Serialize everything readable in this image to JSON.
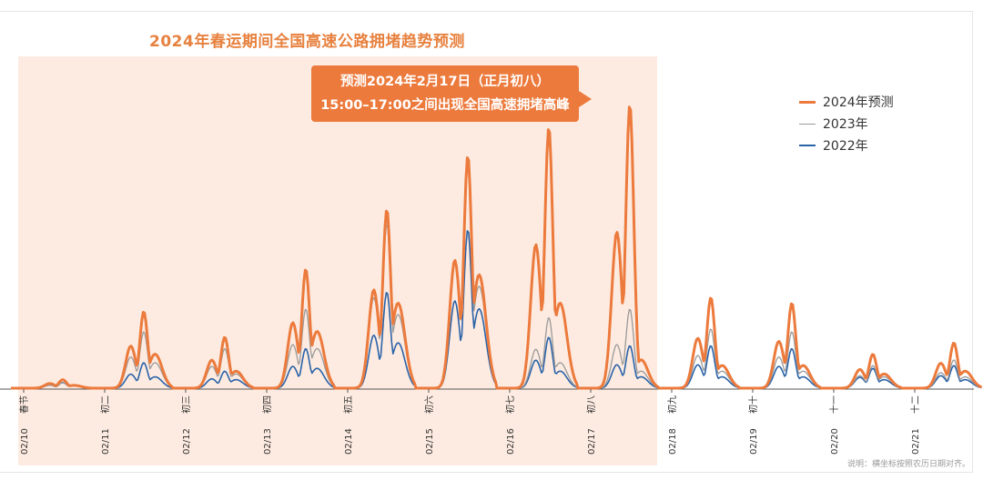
{
  "chart_data": {
    "type": "line",
    "title": "2024年春运期间全国高速公路拥堵趋势预测",
    "xlabel": "",
    "ylabel": "",
    "categories": [
      {
        "date": "02/10",
        "lunar": "春节"
      },
      {
        "date": "02/11",
        "lunar": "初二"
      },
      {
        "date": "02/12",
        "lunar": "初三"
      },
      {
        "date": "02/13",
        "lunar": "初四"
      },
      {
        "date": "02/14",
        "lunar": "初五"
      },
      {
        "date": "02/15",
        "lunar": "初六"
      },
      {
        "date": "02/16",
        "lunar": "初七"
      },
      {
        "date": "02/17",
        "lunar": "初八"
      },
      {
        "date": "02/18",
        "lunar": "初九"
      },
      {
        "date": "02/19",
        "lunar": "初十"
      },
      {
        "date": "02/20",
        "lunar": "十一"
      },
      {
        "date": "02/21",
        "lunar": "十二"
      }
    ],
    "series": [
      {
        "name": "2024年预测",
        "color": "#ec7a3c",
        "daily_peaks": [
          3,
          27,
          18,
          42,
          63,
          82,
          92,
          100,
          32,
          30,
          12,
          16
        ],
        "evening_level": [
          1,
          12,
          6,
          20,
          30,
          40,
          30,
          10,
          8,
          8,
          5,
          6
        ]
      },
      {
        "name": "2023年",
        "color": "#9a9a9a",
        "daily_peaks": [
          2,
          20,
          14,
          28,
          58,
          80,
          25,
          28,
          21,
          20,
          8,
          10
        ],
        "evening_level": [
          1,
          9,
          5,
          14,
          26,
          36,
          9,
          6,
          6,
          6,
          4,
          4
        ]
      },
      {
        "name": "2022年",
        "color": "#2a63a8",
        "daily_peaks": [
          2,
          9,
          6,
          14,
          34,
          56,
          18,
          15,
          15,
          14,
          7,
          8
        ],
        "evening_level": [
          1,
          4,
          3,
          7,
          16,
          28,
          6,
          4,
          4,
          4,
          3,
          3
        ]
      }
    ],
    "highlight_range": [
      "02/10",
      "02/17"
    ],
    "annotation": {
      "line1": "预测2024年2月17日（正月初八）",
      "line2": "15:00–17:00之间出现全国高速拥堵高峰"
    },
    "note": "说明：横坐标按照农历日期对齐。",
    "legend_position": "right",
    "grid": false
  }
}
